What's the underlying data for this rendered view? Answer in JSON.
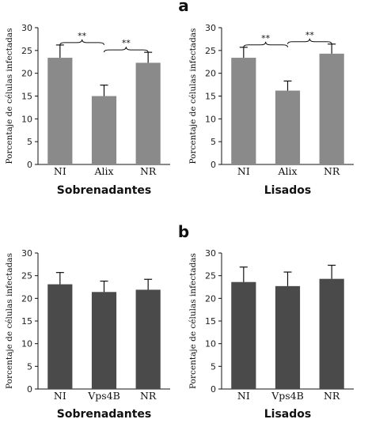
{
  "panel_letters": [
    "a",
    "b"
  ],
  "chart_data": [
    {
      "type": "bar",
      "panel": "a",
      "categories": [
        "NI",
        "Alix",
        "NR"
      ],
      "values": [
        23.4,
        15.0,
        22.3
      ],
      "errors": [
        2.8,
        2.4,
        2.3
      ],
      "ylabel": "Porcentaje de células infectadas",
      "xlabel": "Sobrenadantes",
      "ylim": [
        0,
        30
      ],
      "yticks": [
        0,
        5,
        10,
        15,
        20,
        25,
        30
      ],
      "bar_color": "#8a8a8a",
      "significance": [
        {
          "from": 0,
          "to": 1,
          "label": "**"
        },
        {
          "from": 1,
          "to": 2,
          "label": "**"
        }
      ]
    },
    {
      "type": "bar",
      "panel": "a",
      "categories": [
        "NI",
        "Alix",
        "NR"
      ],
      "values": [
        23.4,
        16.2,
        24.3
      ],
      "errors": [
        2.3,
        2.1,
        2.1
      ],
      "ylabel": "Porcentaje de células infectadas",
      "xlabel": "Lisados",
      "ylim": [
        0,
        30
      ],
      "yticks": [
        0,
        5,
        10,
        15,
        20,
        25,
        30
      ],
      "bar_color": "#8a8a8a",
      "significance": [
        {
          "from": 0,
          "to": 1,
          "label": "**"
        },
        {
          "from": 1,
          "to": 2,
          "label": "**"
        }
      ]
    },
    {
      "type": "bar",
      "panel": "b",
      "categories": [
        "NI",
        "Vps4B",
        "NR"
      ],
      "values": [
        23.1,
        21.4,
        21.9
      ],
      "errors": [
        2.6,
        2.4,
        2.3
      ],
      "ylabel": "Porcentaje de células infectadas",
      "xlabel": "Sobrenadantes",
      "ylim": [
        0,
        30
      ],
      "yticks": [
        0,
        5,
        10,
        15,
        20,
        25,
        30
      ],
      "bar_color": "#4a4a4a",
      "significance": []
    },
    {
      "type": "bar",
      "panel": "b",
      "categories": [
        "NI",
        "Vps4B",
        "NR"
      ],
      "values": [
        23.6,
        22.7,
        24.3
      ],
      "errors": [
        3.3,
        3.1,
        3.0
      ],
      "ylabel": "Porcentaje de células infectadas",
      "xlabel": "Lisados",
      "ylim": [
        0,
        30
      ],
      "yticks": [
        0,
        5,
        10,
        15,
        20,
        25,
        30
      ],
      "bar_color": "#4a4a4a",
      "significance": []
    }
  ]
}
